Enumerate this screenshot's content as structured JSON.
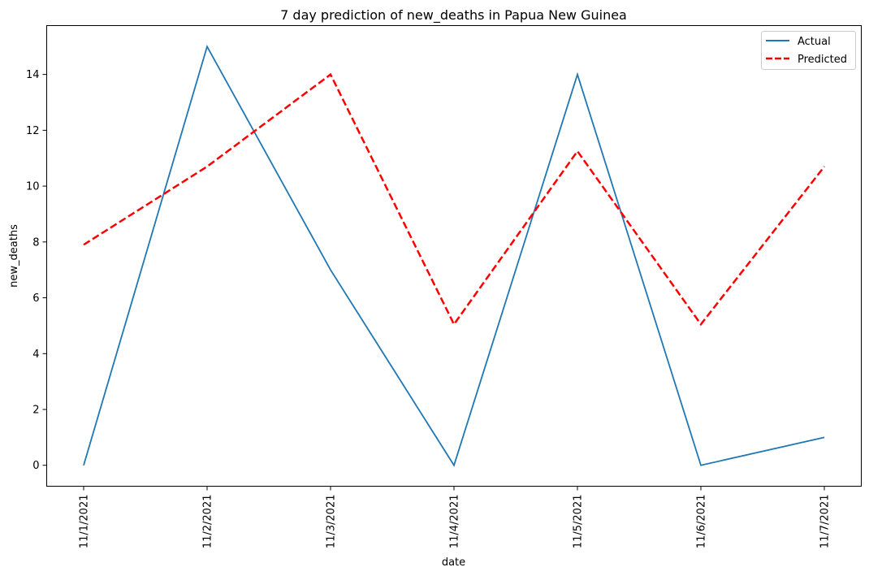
{
  "chart_data": {
    "type": "line",
    "title": "7 day prediction of new_deaths in Papua New Guinea",
    "xlabel": "date",
    "ylabel": "new_deaths",
    "categories": [
      "11/1/2021",
      "11/2/2021",
      "11/3/2021",
      "11/4/2021",
      "11/5/2021",
      "11/6/2021",
      "11/7/2021"
    ],
    "yticks": [
      "0",
      "2",
      "4",
      "6",
      "8",
      "10",
      "12",
      "14"
    ],
    "ylim": [
      -0.75,
      15.75
    ],
    "grid": false,
    "legend_position": "top-right",
    "series": [
      {
        "name": "Actual",
        "values": [
          0,
          15,
          7,
          0,
          14,
          0,
          1
        ],
        "color": "#1f77b4",
        "style": "solid"
      },
      {
        "name": "Predicted",
        "values": [
          7.9,
          10.7,
          14.0,
          5.05,
          11.25,
          5.05,
          10.7
        ],
        "color": "#ff0000",
        "style": "dashed"
      }
    ]
  }
}
